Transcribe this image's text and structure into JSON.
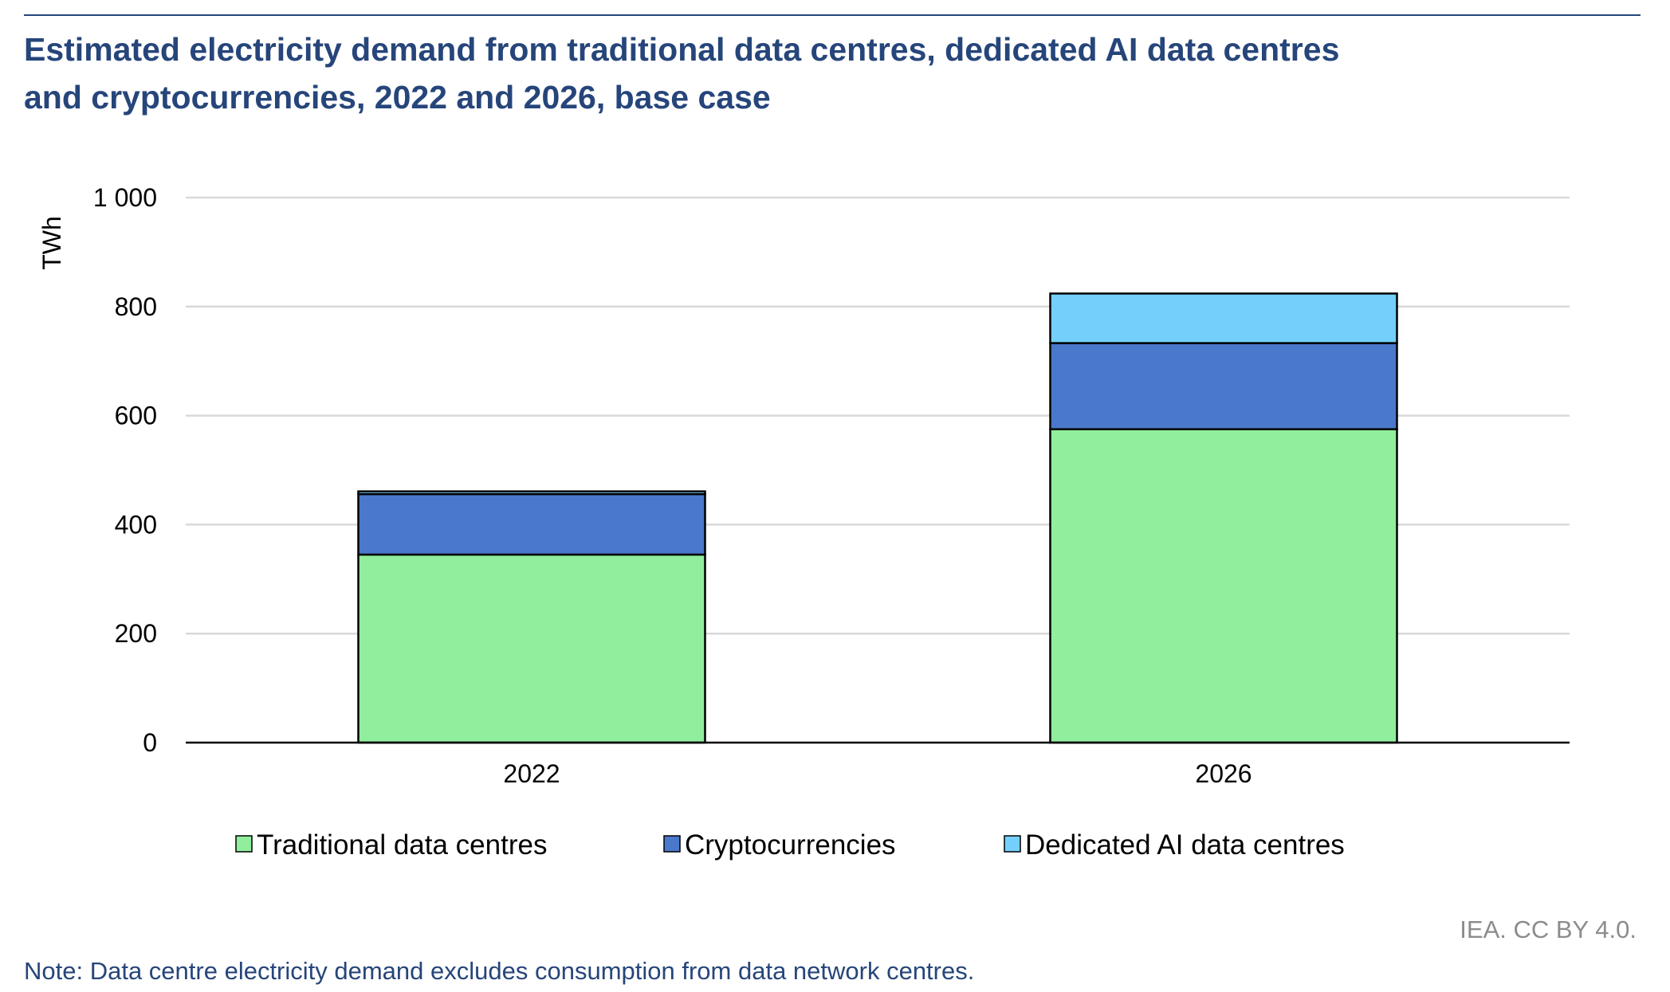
{
  "chart_data": {
    "type": "bar",
    "stacked": true,
    "title": "Estimated electricity demand from traditional data centres, dedicated AI data centres and cryptocurrencies, 2022 and 2026, base case",
    "title_lines": [
      "Estimated electricity demand from traditional data centres, dedicated AI data centres",
      "and cryptocurrencies, 2022 and 2026, base case"
    ],
    "ylabel": "TWh",
    "xlabel": "",
    "ylim": [
      0,
      1000
    ],
    "yticks": [
      0,
      200,
      400,
      600,
      800,
      1000
    ],
    "ytick_labels": [
      "0",
      "200",
      "400",
      "600",
      "800",
      "1 000"
    ],
    "grid": true,
    "legend_position": "bottom",
    "categories": [
      "2022",
      "2026"
    ],
    "series": [
      {
        "name": "Traditional data centres",
        "color": "#90ee9c",
        "values": [
          345,
          575
        ]
      },
      {
        "name": "Cryptocurrencies",
        "color": "#4a78cb",
        "values": [
          111,
          158
        ]
      },
      {
        "name": "Dedicated AI data centres",
        "color": "#74d0fa",
        "values": [
          5,
          91
        ]
      }
    ],
    "source": "IEA. CC BY 4.0.",
    "note": "Note: Data centre electricity demand excludes consumption from data network centres."
  }
}
